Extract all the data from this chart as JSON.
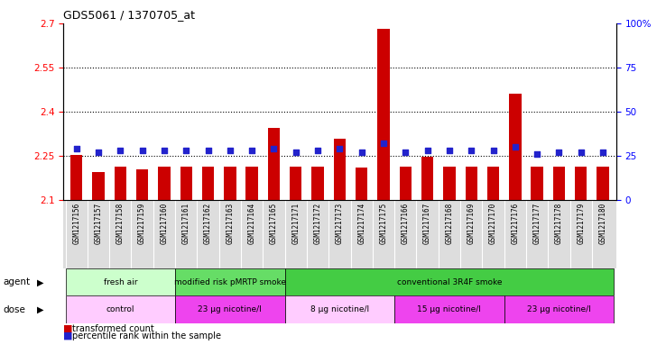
{
  "title": "GDS5061 / 1370705_at",
  "samples": [
    "GSM1217156",
    "GSM1217157",
    "GSM1217158",
    "GSM1217159",
    "GSM1217160",
    "GSM1217161",
    "GSM1217162",
    "GSM1217163",
    "GSM1217164",
    "GSM1217165",
    "GSM1217171",
    "GSM1217172",
    "GSM1217173",
    "GSM1217174",
    "GSM1217175",
    "GSM1217166",
    "GSM1217167",
    "GSM1217168",
    "GSM1217169",
    "GSM1217170",
    "GSM1217176",
    "GSM1217177",
    "GSM1217178",
    "GSM1217179",
    "GSM1217180"
  ],
  "bar_values": [
    2.255,
    2.195,
    2.215,
    2.205,
    2.215,
    2.215,
    2.215,
    2.215,
    2.215,
    2.345,
    2.215,
    2.215,
    2.31,
    2.21,
    2.68,
    2.215,
    2.248,
    2.215,
    2.215,
    2.215,
    2.46,
    2.215,
    2.215,
    2.215,
    2.215
  ],
  "percentile_values": [
    29,
    27,
    28,
    28,
    28,
    28,
    28,
    28,
    28,
    29,
    27,
    28,
    29,
    27,
    32,
    27,
    28,
    28,
    28,
    28,
    30,
    26,
    27,
    27,
    27
  ],
  "bar_color": "#cc0000",
  "percentile_color": "#2222cc",
  "ylim_left": [
    2.1,
    2.7
  ],
  "ylim_right": [
    0,
    100
  ],
  "yticks_left": [
    2.1,
    2.25,
    2.4,
    2.55,
    2.7
  ],
  "yticks_right": [
    0,
    25,
    50,
    75,
    100
  ],
  "ytick_labels_left": [
    "2.1",
    "2.25",
    "2.4",
    "2.55",
    "2.7"
  ],
  "ytick_labels_right": [
    "0",
    "25",
    "50",
    "75",
    "100%"
  ],
  "grid_values": [
    2.25,
    2.4,
    2.55
  ],
  "agent_groups": [
    {
      "label": "fresh air",
      "start": 0,
      "end": 5,
      "color": "#ccffcc"
    },
    {
      "label": "modified risk pMRTP smoke",
      "start": 5,
      "end": 10,
      "color": "#66dd66"
    },
    {
      "label": "conventional 3R4F smoke",
      "start": 10,
      "end": 25,
      "color": "#44cc44"
    }
  ],
  "dose_groups": [
    {
      "label": "control",
      "start": 0,
      "end": 5,
      "color": "#ffccff"
    },
    {
      "label": "23 μg nicotine/l",
      "start": 5,
      "end": 10,
      "color": "#ee44ee"
    },
    {
      "label": "8 μg nicotine/l",
      "start": 10,
      "end": 15,
      "color": "#ffccff"
    },
    {
      "label": "15 μg nicotine/l",
      "start": 15,
      "end": 20,
      "color": "#ee44ee"
    },
    {
      "label": "23 μg nicotine/l",
      "start": 20,
      "end": 25,
      "color": "#ee44ee"
    }
  ],
  "bar_width": 0.55,
  "xticklabel_fontsize": 5.5,
  "legend_label_tc": "transformed count",
  "legend_label_pr": "percentile rank within the sample"
}
